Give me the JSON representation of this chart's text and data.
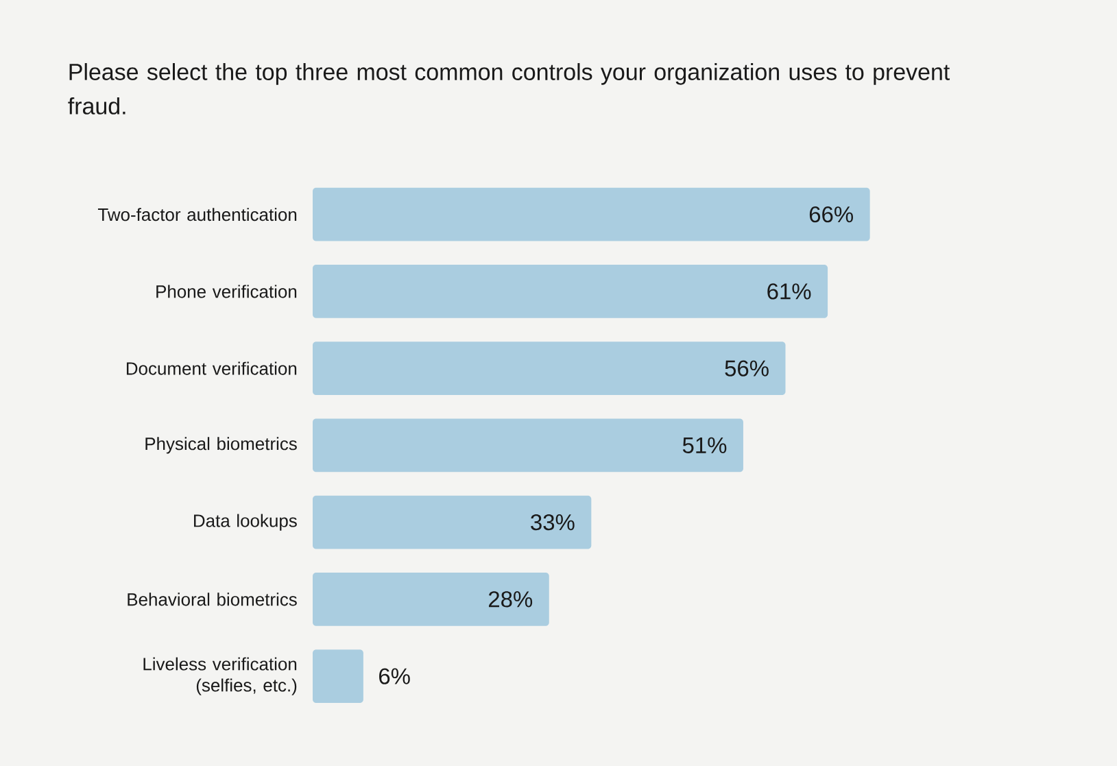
{
  "chart_data": {
    "type": "bar",
    "orientation": "horizontal",
    "title": "Please select the top three most common controls your organization uses to prevent fraud.",
    "categories": [
      "Two-factor authentication",
      "Phone verification",
      "Document verification",
      "Physical biometrics",
      "Data lookups",
      "Behavioral biometrics",
      "Liveless verification (selfies, etc.)"
    ],
    "values": [
      66,
      61,
      56,
      51,
      33,
      28,
      6
    ],
    "value_labels": [
      "66%",
      "61%",
      "56%",
      "51%",
      "33%",
      "28%",
      "6%"
    ],
    "color": "#aacde0"
  }
}
